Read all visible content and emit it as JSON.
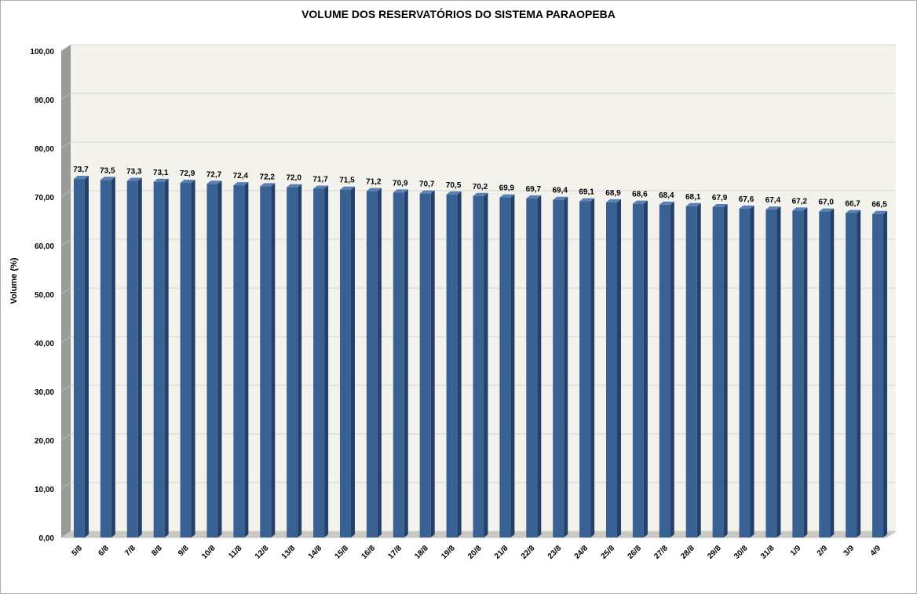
{
  "chart_data": {
    "type": "bar",
    "title": "VOLUME DOS RESERVATÓRIOS DO SISTEMA PARAOPEBA",
    "xlabel": "",
    "ylabel": "Volume (%)",
    "ylim": [
      0,
      100
    ],
    "y_ticks": [
      "0,00",
      "10,00",
      "20,00",
      "30,00",
      "40,00",
      "50,00",
      "60,00",
      "70,00",
      "80,00",
      "90,00",
      "100,00"
    ],
    "grid": true,
    "style": "3d-columns",
    "colors": {
      "bar": "#3a6193",
      "bar_top": "#5a80b4",
      "bar_side": "#23406a",
      "plot_bg": "#f3f2ec",
      "side_wall": "#9a9a96",
      "floor": "#c9c8c2"
    },
    "categories": [
      "5/8",
      "6/8",
      "7/8",
      "8/8",
      "9/8",
      "10/8",
      "11/8",
      "12/8",
      "13/8",
      "14/8",
      "15/8",
      "16/8",
      "17/8",
      "18/8",
      "19/8",
      "20/8",
      "21/8",
      "22/8",
      "23/8",
      "24/8",
      "25/8",
      "26/8",
      "27/8",
      "28/8",
      "29/8",
      "30/8",
      "31/8",
      "1/9",
      "2/9",
      "3/9",
      "4/9"
    ],
    "values": [
      73.7,
      73.5,
      73.3,
      73.1,
      72.9,
      72.7,
      72.4,
      72.2,
      72.0,
      71.7,
      71.5,
      71.2,
      70.9,
      70.7,
      70.5,
      70.2,
      69.9,
      69.7,
      69.4,
      69.1,
      68.9,
      68.6,
      68.4,
      68.1,
      67.9,
      67.6,
      67.4,
      67.2,
      67.0,
      66.7,
      66.5
    ],
    "value_labels": [
      "73,7",
      "73,5",
      "73,3",
      "73,1",
      "72,9",
      "72,7",
      "72,4",
      "72,2",
      "72,0",
      "71,7",
      "71,5",
      "71,2",
      "70,9",
      "70,7",
      "70,5",
      "70,2",
      "69,9",
      "69,7",
      "69,4",
      "69,1",
      "68,9",
      "68,6",
      "68,4",
      "68,1",
      "67,9",
      "67,6",
      "67,4",
      "67,2",
      "67,0",
      "66,7",
      "66,5"
    ]
  }
}
